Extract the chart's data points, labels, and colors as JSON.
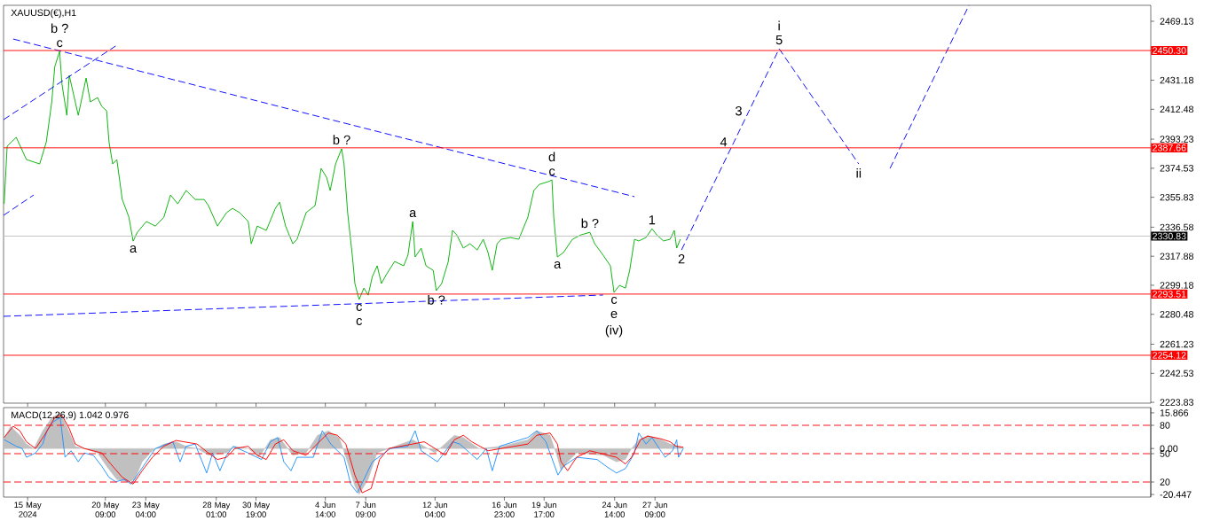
{
  "chart_data": [
    {
      "type": "line",
      "title": "XAUUSD(€),H1",
      "xlim": [
        "2024-05-13T08:00",
        "2024-07-31T15:42"
      ],
      "ylim": [
        2223.3,
        2479.4
      ],
      "tick_labels": "y",
      "xticks": [
        {
          "value": "2024-05-15T00:00",
          "label": null
        },
        {
          "value": "2024-05-20T09:00",
          "label": null
        },
        {
          "value": "2024-05-23T04:00",
          "label": null
        },
        {
          "value": "2024-05-28T01:00",
          "label": null
        },
        {
          "value": "2024-05-30T19:00",
          "label": null
        },
        {
          "value": "2024-06-04T14:00",
          "label": null
        },
        {
          "value": "2024-06-07T09:00",
          "label": null
        },
        {
          "value": "2024-06-12T04:00",
          "label": null
        },
        {
          "value": "2024-06-16T23:00",
          "label": null
        },
        {
          "value": "2024-06-19T17:00",
          "label": null
        },
        {
          "value": "2024-06-24T14:00",
          "label": null
        },
        {
          "value": "2024-06-27T09:00",
          "label": null
        }
      ],
      "yticks": [
        2469.13,
        2431.18,
        2412.48,
        2393.23,
        2374.53,
        2355.83,
        2336.58,
        2317.88,
        2299.18,
        2280.48,
        2261.23,
        2242.53,
        2223.83
      ],
      "series": [
        {
          "color": "#00b000",
          "x": [
            "2024-05-13T09:00",
            "2024-05-13T14:00",
            "2024-05-14T05:00",
            "2024-05-14T22:00",
            "2024-05-15T20:00",
            "2024-05-16T07:00",
            "2024-05-16T16:00",
            "2024-05-16T21:00",
            "2024-05-17T05:00",
            "2024-05-17T09:00",
            "2024-05-17T17:00",
            "2024-05-17T21:00",
            "2024-05-18T07:00",
            "2024-05-18T12:00",
            "2024-05-19T01:00",
            "2024-05-19T08:00",
            "2024-05-19T20:00",
            "2024-05-20T03:00",
            "2024-05-20T11:00",
            "2024-05-20T15:00",
            "2024-05-20T21:00",
            "2024-05-21T04:00",
            "2024-05-21T13:00",
            "2024-05-22T00:00",
            "2024-05-22T07:00",
            "2024-05-22T14:00",
            "2024-05-23T05:00",
            "2024-05-23T20:00",
            "2024-05-24T10:00",
            "2024-05-24T21:00",
            "2024-05-25T09:00",
            "2024-05-25T23:00",
            "2024-05-26T14:00",
            "2024-05-27T05:00",
            "2024-05-27T12:00",
            "2024-05-28T03:00",
            "2024-05-28T18:00",
            "2024-05-29T04:00",
            "2024-05-29T16:00",
            "2024-05-30T06:00",
            "2024-05-30T11:00",
            "2024-05-30T21:00",
            "2024-05-31T12:00",
            "2024-06-01T03:00",
            "2024-06-01T10:00",
            "2024-06-01T20:00",
            "2024-06-02T08:00",
            "2024-06-02T15:00",
            "2024-06-03T06:00",
            "2024-06-03T21:00",
            "2024-06-04T07:00",
            "2024-06-04T16:00",
            "2024-06-04T22:00",
            "2024-06-05T07:00",
            "2024-06-05T17:00",
            "2024-06-05T21:00",
            "2024-06-06T03:00",
            "2024-06-06T11:00",
            "2024-06-06T15:00",
            "2024-06-06T22:00",
            "2024-06-07T06:00",
            "2024-06-07T13:00",
            "2024-06-07T20:00",
            "2024-06-08T04:00",
            "2024-06-08T11:00",
            "2024-06-08T19:00",
            "2024-06-09T09:00",
            "2024-06-10T00:00",
            "2024-06-10T07:00",
            "2024-06-10T15:00",
            "2024-06-10T19:00",
            "2024-06-11T05:00",
            "2024-06-11T13:00",
            "2024-06-12T01:00",
            "2024-06-12T06:00",
            "2024-06-12T15:00",
            "2024-06-13T02:00",
            "2024-06-13T09:00",
            "2024-06-13T16:00",
            "2024-06-14T03:00",
            "2024-06-14T14:00",
            "2024-06-15T02:00",
            "2024-06-15T12:00",
            "2024-06-15T20:00",
            "2024-06-16T03:00",
            "2024-06-16T11:00",
            "2024-06-16T18:00",
            "2024-06-17T09:00",
            "2024-06-17T23:00",
            "2024-06-18T14:00",
            "2024-06-19T00:00",
            "2024-06-19T09:00",
            "2024-06-20T00:00",
            "2024-06-20T06:00",
            "2024-06-20T09:00",
            "2024-06-20T15:00",
            "2024-06-21T01:00",
            "2024-06-21T16:00",
            "2024-06-22T06:00",
            "2024-06-22T21:00",
            "2024-06-23T05:00",
            "2024-06-23T19:00",
            "2024-06-24T07:00",
            "2024-06-24T13:00",
            "2024-06-24T22:00",
            "2024-06-25T08:00",
            "2024-06-25T15:00",
            "2024-06-25T23:00",
            "2024-06-26T06:00",
            "2024-06-26T18:00",
            "2024-06-27T04:00",
            "2024-06-27T12:00",
            "2024-06-27T23:00",
            "2024-06-28T10:00",
            "2024-06-28T17:00",
            "2024-06-28T21:00",
            "2024-06-29T03:00"
          ],
          "values": [
            2351.6,
            2388.7,
            2394.4,
            2380.1,
            2377.3,
            2391.5,
            2417.2,
            2440.0,
            2449.7,
            2428.6,
            2408.6,
            2434.3,
            2417.2,
            2408.6,
            2432.6,
            2417.2,
            2420.0,
            2414.3,
            2411.5,
            2391.5,
            2377.3,
            2380.1,
            2354.4,
            2343.0,
            2327.6,
            2333.3,
            2340.2,
            2337.3,
            2343.0,
            2357.3,
            2351.6,
            2360.2,
            2354.4,
            2354.4,
            2350.5,
            2337.3,
            2345.9,
            2348.7,
            2345.9,
            2340.2,
            2325.9,
            2337.3,
            2334.5,
            2348.7,
            2352.7,
            2337.3,
            2325.9,
            2328.8,
            2345.9,
            2350.5,
            2374.4,
            2368.7,
            2360.2,
            2377.3,
            2387.0,
            2377.3,
            2345.9,
            2317.4,
            2300.3,
            2290.0,
            2297.4,
            2292.8,
            2304.8,
            2311.7,
            2300.3,
            2306.0,
            2314.5,
            2311.7,
            2318.5,
            2340.2,
            2317.4,
            2323.1,
            2311.7,
            2308.8,
            2295.7,
            2300.3,
            2314.5,
            2334.5,
            2331.6,
            2323.1,
            2325.9,
            2321.9,
            2328.8,
            2320.2,
            2308.8,
            2325.9,
            2328.8,
            2329.9,
            2328.8,
            2343.0,
            2360.2,
            2364.1,
            2365.9,
            2367.0,
            2343.0,
            2317.4,
            2320.2,
            2328.8,
            2331.6,
            2333.3,
            2325.9,
            2318.5,
            2311.7,
            2294.6,
            2299.1,
            2297.4,
            2308.8,
            2328.8,
            2327.7,
            2329.9,
            2335.6,
            2331.6,
            2327.7,
            2328.8,
            2334.5,
            2323.1,
            2328.8
          ]
        },
        {
          "type": "line",
          "line_style": "dashed",
          "color": "#0000ff",
          "x": [
            "2024-05-14T00:00",
            "2024-06-25T23:00"
          ],
          "values": [
            2457.7,
            2356.2
          ]
        },
        {
          "type": "line",
          "line_style": "dashed",
          "color": "#0000ff",
          "x": [
            "2024-05-13T08:00",
            "2024-06-23T19:00"
          ],
          "values": [
            2279.2,
            2292.9
          ]
        },
        {
          "type": "line",
          "line_style": "dashed",
          "color": "#0000ff",
          "x": [
            "2024-05-13T08:00",
            "2024-05-21T02:00"
          ],
          "values": [
            2405.8,
            2453.2
          ]
        },
        {
          "type": "line",
          "line_style": "dashed",
          "color": "#0000ff",
          "x": [
            "2024-05-13T08:00",
            "2024-05-15T10:00"
          ],
          "values": [
            2344.2,
            2357.3
          ]
        },
        {
          "type": "line",
          "line_style": "dashed",
          "color": "#0000ff",
          "x": [
            "2024-06-29T05:00",
            "2024-07-02T20:00",
            "2024-07-03T21:00",
            "2024-07-05T23:00",
            "2024-07-11T11:00"
          ],
          "values": [
            2321.9,
            2391.4,
            2411.4,
            2451.4,
            2377.3
          ]
        },
        {
          "type": "line",
          "line_style": "dashed",
          "color": "#0000ff",
          "x": [
            "2024-07-13T15:00",
            "2024-07-19T02:00"
          ],
          "values": [
            2374.4,
            2479.4
          ]
        }
      ],
      "ref_lines": [
        {
          "axis": "y",
          "value": 2450.3,
          "label": "2450.30",
          "color": "#ff0000",
          "line_style": "solid"
        },
        {
          "axis": "y",
          "value": 2387.66,
          "label": "2387.66",
          "color": "#ff0000",
          "line_style": "solid"
        },
        {
          "axis": "y",
          "value": 2330.83,
          "label": "2330.83",
          "color": "#c0c0c0",
          "line_style": "solid"
        },
        {
          "axis": "y",
          "value": 2293.51,
          "label": "2293.51",
          "color": "#ff0000",
          "line_style": "solid"
        },
        {
          "axis": "y",
          "value": 2254.12,
          "label": "2254.12",
          "color": "#ff0000",
          "line_style": "solid"
        }
      ],
      "annotations": [
        {
          "text": "c",
          "x": "2024-05-17T05:00",
          "y": 2449.7
        },
        {
          "text": "b ?",
          "x": "2024-05-17T05:00",
          "y": 2449.7
        },
        {
          "text": "a",
          "x": "2024-05-22T07:00",
          "y": 2327.6
        },
        {
          "text": "b ?",
          "x": "2024-06-05T17:00",
          "y": 2387.0
        },
        {
          "text": "c",
          "x": "2024-06-06T22:00",
          "y": 2290.0
        },
        {
          "text": "c",
          "x": "2024-06-06T22:00",
          "y": 2290.0
        },
        {
          "text": "a",
          "x": "2024-06-10T15:00",
          "y": 2340.2
        },
        {
          "text": "b ?",
          "x": "2024-06-12T06:00",
          "y": 2295.7
        },
        {
          "text": "c",
          "x": "2024-06-20T06:00",
          "y": 2367.0
        },
        {
          "text": "d",
          "x": "2024-06-20T06:00",
          "y": 2367.0
        },
        {
          "text": "b ?",
          "x": "2024-06-22T21:00",
          "y": 2333.3
        },
        {
          "text": "a",
          "x": "2024-06-20T15:00",
          "y": 2317.4
        },
        {
          "text": "1",
          "x": "2024-06-27T04:00",
          "y": 2335.6
        },
        {
          "text": "2",
          "x": "2024-06-29T05:00",
          "y": 2321.9
        },
        {
          "text": "c",
          "x": "2024-06-24T13:00",
          "y": 2294.6
        },
        {
          "text": "e",
          "x": "2024-06-24T13:00",
          "y": 2294.6
        },
        {
          "text": "(iv)",
          "x": "2024-06-24T13:00",
          "y": 2294.6
        },
        {
          "text": "3",
          "x": "2024-07-03T21:00",
          "y": 2411.4
        },
        {
          "text": "4",
          "x": "2024-07-02T20:00",
          "y": 2391.4
        },
        {
          "text": "5",
          "x": "2024-07-05T23:00",
          "y": 2451.4
        },
        {
          "text": "i",
          "x": "2024-07-05T23:00",
          "y": 2451.4
        },
        {
          "text": "ii",
          "x": "2024-07-11T11:00",
          "y": 2377.3
        }
      ]
    },
    {
      "type": "line",
      "title": "MACD(12,26,9) 1.042 0.976",
      "xlim": [
        "2024-05-13T08:00",
        "2024-07-31T15:42"
      ],
      "ylim": [
        -21.6,
        18.2
      ],
      "y2lim": [
        4.06,
        98.75
      ],
      "xticks": [
        {
          "value": "2024-05-15T00:00",
          "label": "15 May 2024"
        },
        {
          "value": "2024-05-20T09:00",
          "label": "20 May 09:00"
        },
        {
          "value": "2024-05-23T04:00",
          "label": "23 May 04:00"
        },
        {
          "value": "2024-05-28T01:00",
          "label": "28 May 01:00"
        },
        {
          "value": "2024-05-30T19:00",
          "label": "30 May 19:00"
        },
        {
          "value": "2024-06-04T14:00",
          "label": "4 Jun 14:00"
        },
        {
          "value": "2024-06-07T09:00",
          "label": "7 Jun 09:00"
        },
        {
          "value": "2024-06-12T04:00",
          "label": "12 Jun 04:00"
        },
        {
          "value": "2024-06-16T23:00",
          "label": "16 Jun 23:00"
        },
        {
          "value": "2024-06-19T17:00",
          "label": "19 Jun 17:00"
        },
        {
          "value": "2024-06-24T14:00",
          "label": "24 Jun 14:00"
        },
        {
          "value": "2024-06-27T09:00",
          "label": "27 Jun 09:00"
        }
      ],
      "yticks": [
        15.866,
        {
          "value": 0,
          "label": "0.00"
        },
        -20.447
      ],
      "y2ticks": [
        80,
        50,
        20
      ],
      "series": [
        {
          "type": "area",
          "color": "#c0c0c0",
          "x": [
            "2024-05-13T09:00",
            "2024-05-13T20:00",
            "2024-05-14T11:00",
            "2024-05-14T22:00",
            "2024-05-15T10:00",
            "2024-05-16T01:00",
            "2024-05-16T16:00",
            "2024-05-17T06:00",
            "2024-05-17T17:00",
            "2024-05-18T07:00",
            "2024-05-18T22:00",
            "2024-05-19T20:00",
            "2024-05-20T11:00",
            "2024-05-21T04:00",
            "2024-05-22T00:00",
            "2024-05-22T10:00",
            "2024-05-22T22:00",
            "2024-05-23T15:00",
            "2024-05-24T10:00",
            "2024-05-25T06:00",
            "2024-05-25T23:00",
            "2024-05-26T17:00",
            "2024-05-27T12:00",
            "2024-05-28T18:00",
            "2024-05-29T08:00",
            "2024-05-30T06:00",
            "2024-05-31T00:00",
            "2024-05-31T19:00",
            "2024-06-01T10:00",
            "2024-06-02T08:00",
            "2024-06-03T06:00",
            "2024-06-04T01:00",
            "2024-06-04T19:00",
            "2024-06-05T13:00",
            "2024-06-06T00:00",
            "2024-06-06T15:00",
            "2024-06-06T22:00",
            "2024-06-07T13:00",
            "2024-06-08T04:00",
            "2024-06-08T23:00",
            "2024-06-10T15:00",
            "2024-06-11T10:00",
            "2024-06-12T04:00",
            "2024-06-13T12:00",
            "2024-06-14T03:00",
            "2024-06-15T05:00",
            "2024-06-16T18:00",
            "2024-06-18T14:00",
            "2024-06-19T05:00",
            "2024-06-20T03:00",
            "2024-06-20T15:00",
            "2024-06-20T21:00",
            "2024-06-21T08:00",
            "2024-06-21T23:00",
            "2024-06-23T19:00",
            "2024-06-24T17:00",
            "2024-06-25T08:00",
            "2024-06-25T18:00",
            "2024-06-26T06:00",
            "2024-06-26T21:00",
            "2024-06-27T19:00",
            "2024-06-28T10:00",
            "2024-06-29T08:00"
          ],
          "values": [
            4.9,
            9.9,
            5.9,
            2.0,
            0,
            7.9,
            13.8,
            15.8,
            9.9,
            1.0,
            0,
            -2.0,
            -7.9,
            -13.8,
            -14.8,
            -13.8,
            -5.9,
            -1.0,
            2.0,
            3.0,
            1.0,
            0,
            -3.0,
            -2.0,
            1.0,
            0,
            -3.9,
            3.9,
            4.9,
            -3.0,
            -2.0,
            5.9,
            7.9,
            4.9,
            -3.9,
            -16.8,
            -20.4,
            -13.8,
            -2.0,
            0,
            3.9,
            1.0,
            -2.0,
            5.9,
            4.9,
            0,
            1.0,
            3.9,
            7.9,
            5.9,
            -3.9,
            -9.9,
            -5.9,
            -2.0,
            -3.0,
            -5.9,
            -4.9,
            0,
            3.9,
            5.9,
            3.9,
            2.0,
            0.4
          ]
        },
        {
          "type": "line",
          "color": "#1e90ff",
          "x": [
            "2024-05-13T09:00",
            "2024-05-14T05:00",
            "2024-05-14T15:00",
            "2024-05-14T22:00",
            "2024-05-15T13:00",
            "2024-05-16T01:00",
            "2024-05-16T08:00",
            "2024-05-16T18:00",
            "2024-05-17T06:00",
            "2024-05-17T14:00",
            "2024-05-18T00:00",
            "2024-05-18T12:00",
            "2024-05-18T22:00",
            "2024-05-19T13:00",
            "2024-05-20T03:00",
            "2024-05-20T15:00",
            "2024-05-21T02:00",
            "2024-05-21T16:00",
            "2024-05-22T04:00",
            "2024-05-22T14:00",
            "2024-05-23T05:00",
            "2024-05-23T20:00",
            "2024-05-24T15:00",
            "2024-05-25T01:00",
            "2024-05-25T13:00",
            "2024-05-25T23:00",
            "2024-05-26T14:00",
            "2024-05-27T09:00",
            "2024-05-27T19:00",
            "2024-05-28T07:00",
            "2024-05-28T18:00",
            "2024-05-29T05:00",
            "2024-05-30T06:00",
            "2024-05-31T04:00",
            "2024-05-31T19:00",
            "2024-06-01T07:00",
            "2024-06-01T17:00",
            "2024-06-02T05:00",
            "2024-06-02T15:00",
            "2024-06-03T18:00",
            "2024-06-04T09:00",
            "2024-06-04T23:00",
            "2024-06-05T21:00",
            "2024-06-06T08:00",
            "2024-06-06T19:00",
            "2024-06-07T06:00",
            "2024-06-07T20:00",
            "2024-06-09T02:00",
            "2024-06-10T07:00",
            "2024-06-10T19:00",
            "2024-06-11T05:00",
            "2024-06-12T08:00",
            "2024-06-13T09:00",
            "2024-06-13T21:00",
            "2024-06-15T02:00",
            "2024-06-15T17:00",
            "2024-06-16T03:00",
            "2024-06-16T15:00",
            "2024-06-18T14:00",
            "2024-06-19T05:00",
            "2024-06-19T20:00",
            "2024-06-20T16:00",
            "2024-06-21T01:00",
            "2024-06-21T23:00",
            "2024-06-23T09:00",
            "2024-06-24T00:00",
            "2024-06-24T17:00",
            "2024-06-25T08:00",
            "2024-06-25T23:00",
            "2024-06-26T06:00",
            "2024-06-26T18:00",
            "2024-06-27T04:00",
            "2024-06-27T16:00",
            "2024-06-28T02:00",
            "2024-06-28T14:00",
            "2024-06-28T21:00",
            "2024-06-29T00:00",
            "2024-06-29T08:00"
          ],
          "values": [
            3.9,
            1.0,
            0,
            -3.9,
            -2.0,
            2.0,
            7.9,
            11.8,
            13.8,
            -3.9,
            -1.0,
            -5.9,
            -2.0,
            -3.0,
            -7.9,
            -12.8,
            -14.8,
            -13.8,
            -15.8,
            -11.8,
            -5.9,
            0,
            2.0,
            3.0,
            -5.9,
            1.0,
            2.0,
            -10.9,
            -2.0,
            -9.9,
            -3.0,
            1.0,
            -2.0,
            -4.9,
            3.0,
            4.9,
            -5.9,
            -9.9,
            -3.9,
            -3.9,
            7.9,
            2.0,
            -3.9,
            -15.8,
            -19.7,
            -13.8,
            -5.9,
            0,
            1.0,
            7.9,
            -1.0,
            -5.9,
            3.0,
            2.0,
            -4.9,
            0,
            -9.9,
            1.0,
            4.9,
            7.9,
            3.0,
            -11.8,
            -7.9,
            -3.9,
            -4.9,
            -7.9,
            -10.9,
            -8.9,
            -2.0,
            6.9,
            2.0,
            4.9,
            0,
            -3.9,
            -1.0,
            3.9,
            -3.9,
            0
          ]
        },
        {
          "type": "line",
          "color": "#ff0000",
          "x": [
            "2024-05-13T09:00",
            "2024-05-14T00:00",
            "2024-05-14T11:00",
            "2024-05-14T22:00",
            "2024-05-15T13:00",
            "2024-05-16T04:00",
            "2024-05-16T21:00",
            "2024-05-17T09:00",
            "2024-05-17T21:00",
            "2024-05-18T07:00",
            "2024-05-18T22:00",
            "2024-05-20T03:00",
            "2024-05-20T18:00",
            "2024-05-21T13:00",
            "2024-05-22T07:00",
            "2024-05-22T22:00",
            "2024-05-23T15:00",
            "2024-05-24T10:00",
            "2024-05-25T06:00",
            "2024-05-26T17:00",
            "2024-05-27T12:00",
            "2024-05-28T03:00",
            "2024-05-28T18:00",
            "2024-05-29T08:00",
            "2024-05-30T06:00",
            "2024-05-30T21:00",
            "2024-05-31T12:00",
            "2024-06-01T03:00",
            "2024-06-01T17:00",
            "2024-06-02T08:00",
            "2024-06-03T06:00",
            "2024-06-04T04:00",
            "2024-06-04T19:00",
            "2024-06-05T10:00",
            "2024-06-06T00:00",
            "2024-06-06T15:00",
            "2024-06-07T03:00",
            "2024-06-07T18:00",
            "2024-06-08T08:00",
            "2024-06-08T23:00",
            "2024-06-10T15:00",
            "2024-06-11T10:00",
            "2024-06-12T04:00",
            "2024-06-12T21:00",
            "2024-06-13T12:00",
            "2024-06-14T03:00",
            "2024-06-14T17:00",
            "2024-06-15T20:00",
            "2024-06-17T16:00",
            "2024-06-18T14:00",
            "2024-06-19T05:00",
            "2024-06-20T03:00",
            "2024-06-20T15:00",
            "2024-06-20T21:00",
            "2024-06-21T08:00",
            "2024-06-21T23:00",
            "2024-06-22T21:00",
            "2024-06-24T17:00",
            "2024-06-25T08:00",
            "2024-06-25T18:00",
            "2024-06-26T09:00",
            "2024-06-26T21:00",
            "2024-06-27T19:00",
            "2024-06-28T10:00",
            "2024-06-28T20:00",
            "2024-06-29T08:00"
          ],
          "values": [
            4.9,
            9.9,
            7.9,
            3.0,
            0,
            5.9,
            13.8,
            14.8,
            8.9,
            2.0,
            0,
            -2.0,
            -6.9,
            -12.8,
            -15.8,
            -9.9,
            -3.9,
            1.0,
            3.6,
            2.0,
            -2.0,
            -4.9,
            -3.9,
            0,
            1.0,
            -3.0,
            -4.9,
            2.0,
            3.9,
            -1.0,
            -3.0,
            3.0,
            6.9,
            5.9,
            2.0,
            -11.8,
            -19.7,
            -17.8,
            -4.9,
            0,
            2.0,
            3.0,
            0,
            -3.0,
            3.9,
            5.9,
            3.0,
            -1.0,
            1.0,
            2.0,
            5.9,
            6.9,
            2.0,
            -5.9,
            -9.9,
            -3.9,
            -1.0,
            -3.9,
            -6.9,
            -3.9,
            3.9,
            5.5,
            4.3,
            3.0,
            1.0,
            0.6
          ]
        }
      ],
      "ref_lines": [
        {
          "axis": "y2",
          "value": 80,
          "color": "#ff0000",
          "line_style": "dashed"
        },
        {
          "axis": "y2",
          "value": 50,
          "color": "#ff0000",
          "line_style": "dashed"
        },
        {
          "axis": "y2",
          "value": 20,
          "color": "#ff0000",
          "line_style": "dashed"
        }
      ]
    }
  ]
}
